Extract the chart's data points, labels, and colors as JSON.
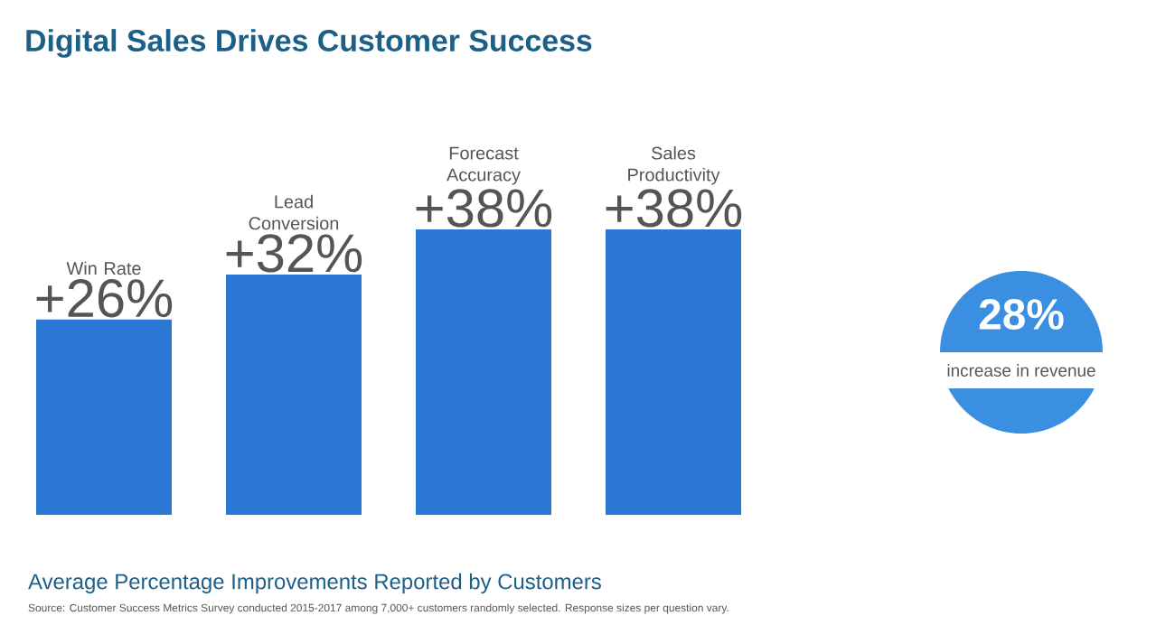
{
  "chart_data": {
    "type": "bar",
    "title": "Digital Sales Drives Customer Success",
    "categories": [
      "Win Rate",
      "Lead Conversion",
      "Forecast Accuracy",
      "Sales Productivity"
    ],
    "values": [
      26,
      32,
      38,
      38
    ],
    "value_labels": [
      "+26%",
      "+32%",
      "+38%",
      "+38%"
    ],
    "color": "#2b78d4",
    "annotations": [
      "28%",
      "increase in revenue",
      "Average Percentage Improvements Reported by Customers",
      "Source: Customer Success Metrics Survey conducted 2015-2017 among 7,000+ customers randomly selected.  Response sizes per question vary."
    ]
  }
}
